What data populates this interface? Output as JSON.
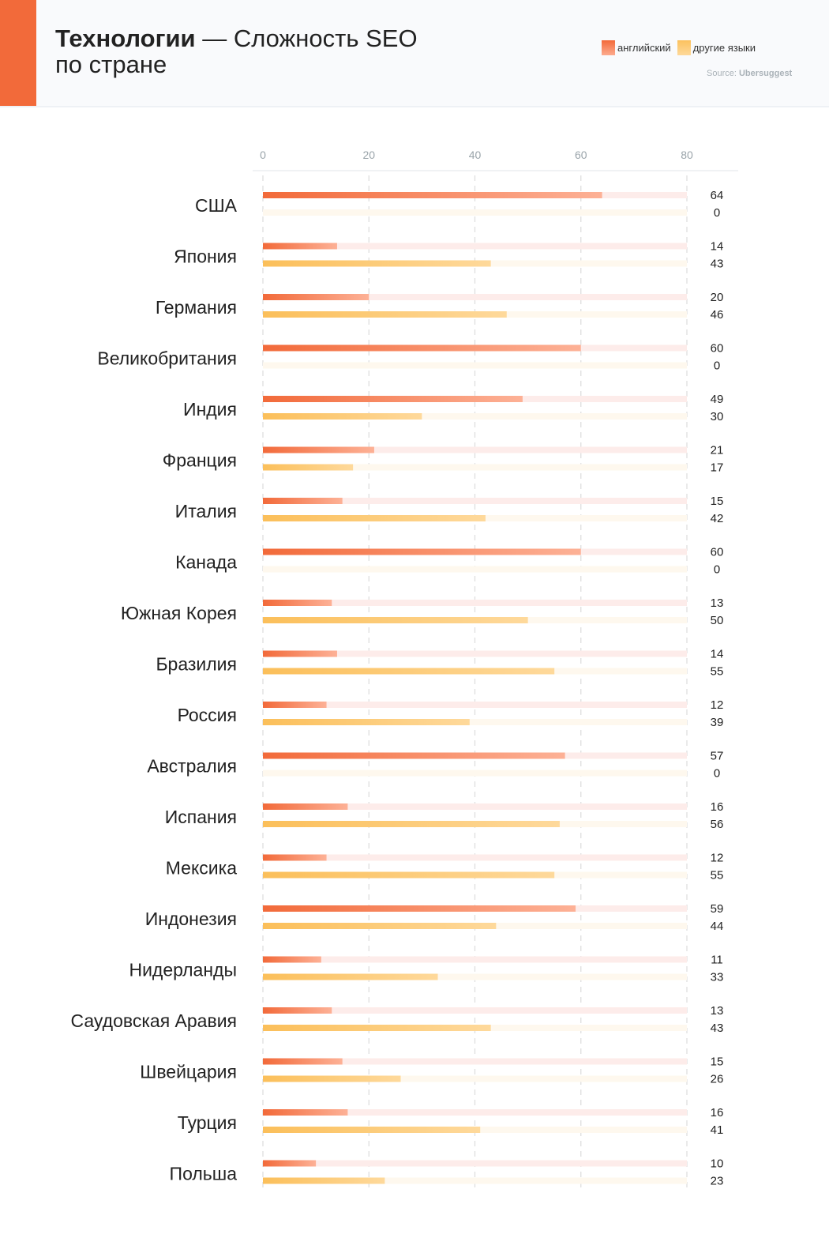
{
  "header": {
    "title_bold": "Технологии",
    "title_rest": " — Сложность SEO",
    "title_line2": "по стране",
    "source_label": "Source:",
    "source_name": "Ubersuggest"
  },
  "colors": {
    "english": "#f26a3a",
    "other": "#fbbf5a",
    "english_track": "#fdecea",
    "other_track": "#fef8ee",
    "accent": "#f26a3a"
  },
  "chart_data": {
    "type": "bar",
    "orientation": "horizontal",
    "title": "Технологии — Сложность SEO по стране",
    "xlim": [
      0,
      80
    ],
    "xticks": [
      0,
      20,
      40,
      60,
      80
    ],
    "legend_position": "top-right",
    "categories": [
      "США",
      "Япония",
      "Германия",
      "Великобритания",
      "Индия",
      "Франция",
      "Италия",
      "Канада",
      "Южная Корея",
      "Бразилия",
      "Россия",
      "Австралия",
      "Испания",
      "Мексика",
      "Индонезия",
      "Нидерланды",
      "Саудовская Аравия",
      "Швейцария",
      "Турция",
      "Польша"
    ],
    "series": [
      {
        "name": "английский",
        "values": [
          64,
          14,
          20,
          60,
          49,
          21,
          15,
          60,
          13,
          14,
          12,
          57,
          16,
          12,
          59,
          11,
          13,
          15,
          16,
          10
        ]
      },
      {
        "name": "другие языки",
        "values": [
          0,
          43,
          46,
          0,
          30,
          17,
          42,
          0,
          50,
          55,
          39,
          0,
          56,
          55,
          44,
          33,
          43,
          26,
          41,
          23
        ]
      }
    ]
  }
}
